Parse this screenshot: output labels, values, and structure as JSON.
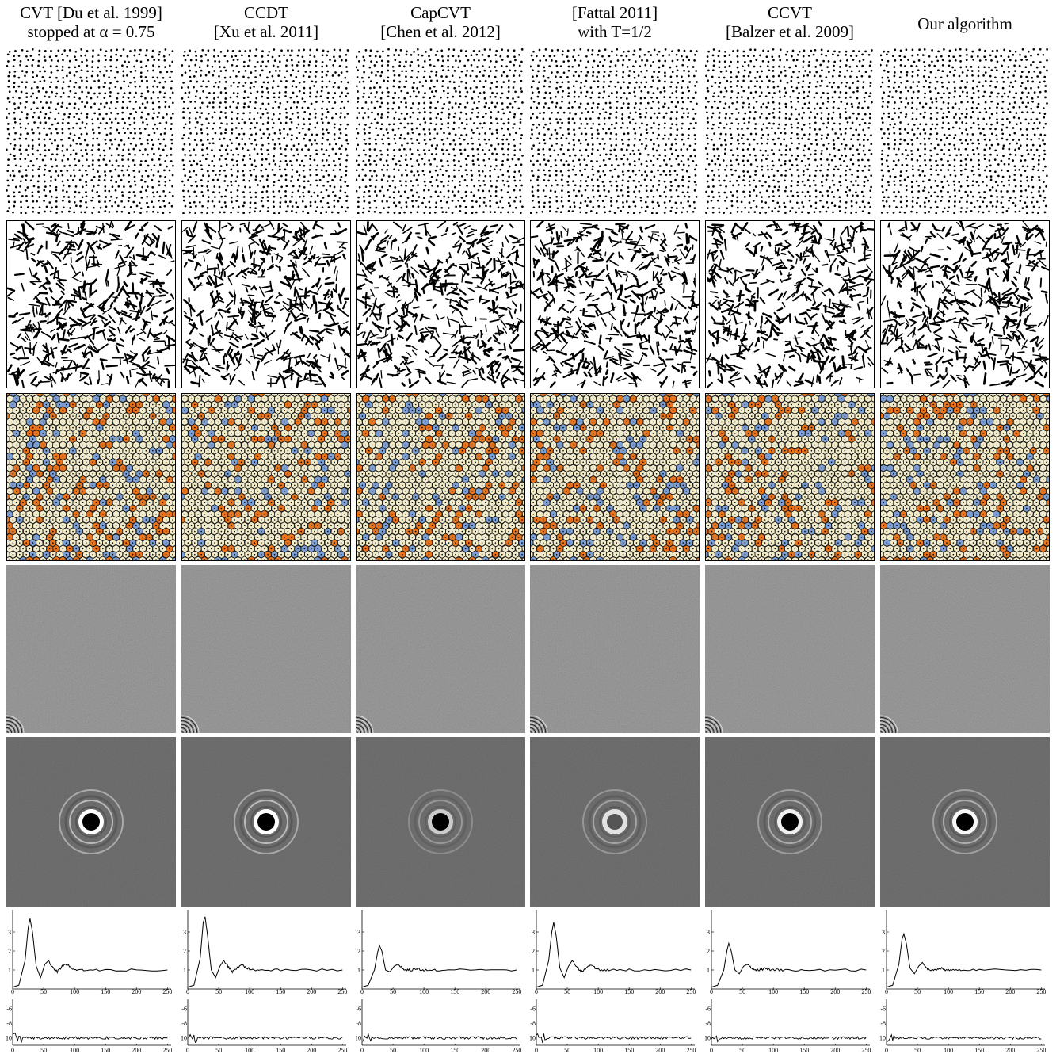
{
  "columns": [
    {
      "title_line1": "CVT [Du et al. 1999]",
      "title_line2": "stopped at α = 0.75"
    },
    {
      "title_line1": "CCDT",
      "title_line2": "[Xu et al. 2011]"
    },
    {
      "title_line1": "CapCVT",
      "title_line2": "[Chen et al. 2012]"
    },
    {
      "title_line1": "[Fattal 2011]",
      "title_line2": "with T=1/2"
    },
    {
      "title_line1": "CCVT",
      "title_line2": "[Balzer et al. 2009]"
    },
    {
      "title_line1": "Our algorithm",
      "title_line2": ""
    }
  ],
  "colors": {
    "voronoi_hex": "#f2eccb",
    "voronoi_pent": "#e8741e",
    "voronoi_hept": "#7c9fd6",
    "voronoi_edge": "#1a1a1a",
    "gray": "#808080"
  },
  "chart_data": [
    {
      "type": "line",
      "name": "radial power spectrum",
      "xlim": [
        0,
        256
      ],
      "ylim": [
        0,
        4
      ],
      "xticks": [
        "0",
        "50",
        "100",
        "150",
        "200",
        "250"
      ],
      "yticks": [
        "1",
        "2",
        "3"
      ],
      "series": [
        {
          "x": [
            0,
            10,
            20,
            25,
            28,
            32,
            38,
            45,
            52,
            58,
            65,
            72,
            80,
            88,
            95,
            105,
            120,
            150,
            200,
            250
          ],
          "columns_values": [
            [
              0.1,
              0.2,
              1.5,
              3.2,
              3.7,
              3.0,
              1.2,
              0.6,
              1.3,
              1.5,
              1.1,
              0.9,
              1.2,
              1.3,
              1.1,
              1.0,
              1.0,
              1.0,
              1.0,
              1.0
            ],
            [
              0.1,
              0.2,
              1.6,
              3.5,
              3.8,
              2.8,
              1.0,
              0.6,
              1.2,
              1.5,
              1.2,
              0.9,
              1.1,
              1.3,
              1.1,
              1.0,
              1.0,
              1.0,
              1.0,
              1.0
            ],
            [
              0.1,
              0.2,
              1.0,
              1.9,
              2.3,
              2.0,
              1.0,
              0.9,
              1.2,
              1.3,
              1.1,
              1.0,
              1.0,
              1.1,
              1.0,
              1.0,
              1.0,
              1.0,
              1.0,
              1.0
            ],
            [
              0.1,
              0.2,
              1.5,
              3.0,
              3.5,
              2.8,
              1.1,
              0.6,
              1.2,
              1.5,
              1.2,
              0.9,
              1.1,
              1.3,
              1.1,
              1.0,
              1.0,
              1.0,
              1.0,
              1.0
            ],
            [
              0.1,
              0.2,
              1.0,
              2.0,
              2.4,
              2.0,
              1.0,
              0.8,
              1.2,
              1.3,
              1.1,
              1.0,
              1.0,
              1.1,
              1.0,
              1.0,
              1.0,
              1.0,
              1.0,
              1.0
            ],
            [
              0.1,
              0.2,
              1.3,
              2.6,
              2.9,
              2.4,
              1.1,
              0.8,
              1.2,
              1.4,
              1.1,
              1.0,
              1.0,
              1.1,
              1.0,
              1.0,
              1.0,
              1.0,
              1.0,
              1.0
            ]
          ]
        }
      ]
    },
    {
      "type": "line",
      "name": "anisotropy",
      "xlim": [
        0,
        256
      ],
      "ylim": [
        -11,
        -5
      ],
      "xticks": [
        "0",
        "50",
        "100",
        "150",
        "200",
        "250"
      ],
      "yticks": [
        "-6",
        "-8",
        "-10"
      ],
      "level": -10
    }
  ]
}
